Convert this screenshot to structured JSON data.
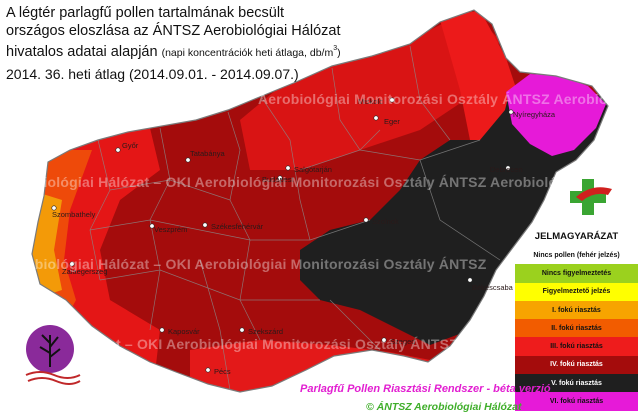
{
  "title": {
    "line1": "A légtér parlagfű pollen tartalmának becsült",
    "line2": "országos eloszlása az ÁNTSZ Aerobiológiai Hálózat",
    "line3_main": "hivatalos adatai alapján",
    "line3_note": "(napi koncentrációk heti átlaga, db/m",
    "line3_sup": "3",
    "line3_close": ")"
  },
  "period": "2014. 36. heti átlag (2014.09.01. - 2014.09.07.)",
  "watermarks": {
    "top": "Aerobiológiai Monitorozási Osztály   ÁNTSZ Aerobiológiai",
    "middle": "Aerobiológiai Hálózat  –  OKI Aerobiológiai Monitorozási Osztály   ÁNTSZ Aerobiológiai",
    "lower": "Aerobiológiai Hálózat  –  OKI Aerobiológiai Monitorozási Osztály   ÁNTSZ",
    "bottom": "ózat – OKI Aerobiológiai Monitorozási Osztály   ÁNTSZ Aerobiológiai"
  },
  "cities": [
    {
      "name": "Győr"
    },
    {
      "name": "Tatabánya"
    },
    {
      "name": "Miskolc"
    },
    {
      "name": "Eger"
    },
    {
      "name": "Nyíregyháza"
    },
    {
      "name": "Szombathely"
    },
    {
      "name": "Veszprém"
    },
    {
      "name": "Székesfehérvár"
    },
    {
      "name": "Szolnok"
    },
    {
      "name": "Zalaegerszeg"
    },
    {
      "name": "Kaposvár"
    },
    {
      "name": "Pécs"
    },
    {
      "name": "Szekszárd"
    },
    {
      "name": "Békéscsaba"
    },
    {
      "name": "Szeged"
    },
    {
      "name": "Debrecen"
    },
    {
      "name": "Salgótarján"
    },
    {
      "name": "Budapest"
    }
  ],
  "legend": {
    "title": "JELMAGYARÁZAT",
    "items": [
      {
        "label": "Nincs pollen (fehér jelzés)",
        "color": "#ffffff"
      },
      {
        "label": "Nincs figyelmeztetés",
        "color": "#9bd11e"
      },
      {
        "label": "Figyelmeztető jelzés",
        "color": "#ffff00"
      },
      {
        "label": "I. fokú riasztás",
        "color": "#f7a400"
      },
      {
        "label": "II. fokú riasztás",
        "color": "#f25c00"
      },
      {
        "label": "III. fokú riasztás",
        "color": "#ee1c1c"
      },
      {
        "label": "IV. fokú riasztás",
        "color": "#a40c0c"
      },
      {
        "label": "V. fokú riasztás",
        "color": "#1f1f1f"
      },
      {
        "label": "VI. fokú riasztás",
        "color": "#e61ad8"
      }
    ]
  },
  "footer": {
    "title": "Parlagfű Pollen Riasztási Rendszer - béta verzió",
    "copyright": "© ÁNTSZ Aerobiológiai Hálózat",
    "title_color": "#e21fd1",
    "copyright_color": "#3fae2a"
  }
}
